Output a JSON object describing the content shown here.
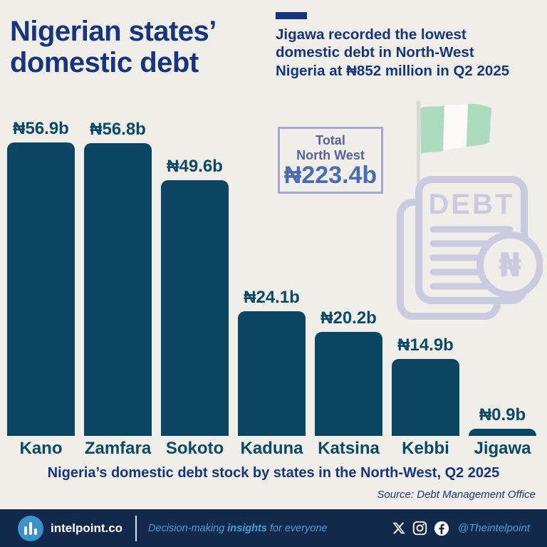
{
  "header": {
    "title_lines": [
      "Nigerian states’",
      "domestic debt"
    ],
    "subtitle_lines": [
      "Jigawa recorded the lowest",
      "domestic debt in North-West",
      "Nigeria at ₦852 million in Q2 2025"
    ]
  },
  "total_box": {
    "label_line1": "Total",
    "label_line2": "North West",
    "value": "₦223.4b"
  },
  "chart_data": {
    "type": "bar",
    "categories": [
      "Kano",
      "Zamfara",
      "Sokoto",
      "Kaduna",
      "Katsina",
      "Kebbi",
      "Jigawa"
    ],
    "values": [
      56.9,
      56.8,
      49.6,
      24.1,
      20.2,
      14.9,
      0.9
    ],
    "value_labels": [
      "₦56.9b",
      "₦56.8b",
      "₦49.6b",
      "₦24.1b",
      "₦20.2b",
      "₦14.9b",
      "₦0.9b"
    ],
    "unit": "billions of Nigerian naira",
    "title": "Nigeria’s domestic debt stock by states in the North-West, Q2 2025",
    "xlabel": "",
    "ylabel": "",
    "ylim": [
      0,
      60
    ],
    "grid": false,
    "legend": false,
    "bar_color": "#0a4661",
    "total": "₦223.4b",
    "source": "Source: Debt Management Office"
  },
  "caption": "Nigeria’s domestic debt stock by states in the North-West, Q2 2025",
  "source": "Source: Debt Management Office",
  "illustration": {
    "doc_label": "DEBT",
    "doc_currency": "₦",
    "flag": "nigeria-flag"
  },
  "footer": {
    "brand": "intelpoint.co",
    "tagline_prefix": "Decision-making ",
    "tagline_bold": "insights",
    "tagline_suffix": " for everyone",
    "handle": "@Theintelpoint",
    "social_icons": [
      "x-icon",
      "instagram-icon",
      "facebook-icon"
    ]
  },
  "colors": {
    "background": "#f0eee9",
    "title_blue": "#17357f",
    "bar_teal": "#0a4661",
    "label_teal": "#0a4a66",
    "total_border": "#a6a7ce",
    "total_label": "#5a5f9b",
    "total_value": "#4a6cb0",
    "lavender": "#cacbe0",
    "flag_green": "#abdcbf",
    "footer_bg": "#13294b",
    "footer_accent": "#4c9fd6",
    "logo_circle": "#3a92c8"
  }
}
